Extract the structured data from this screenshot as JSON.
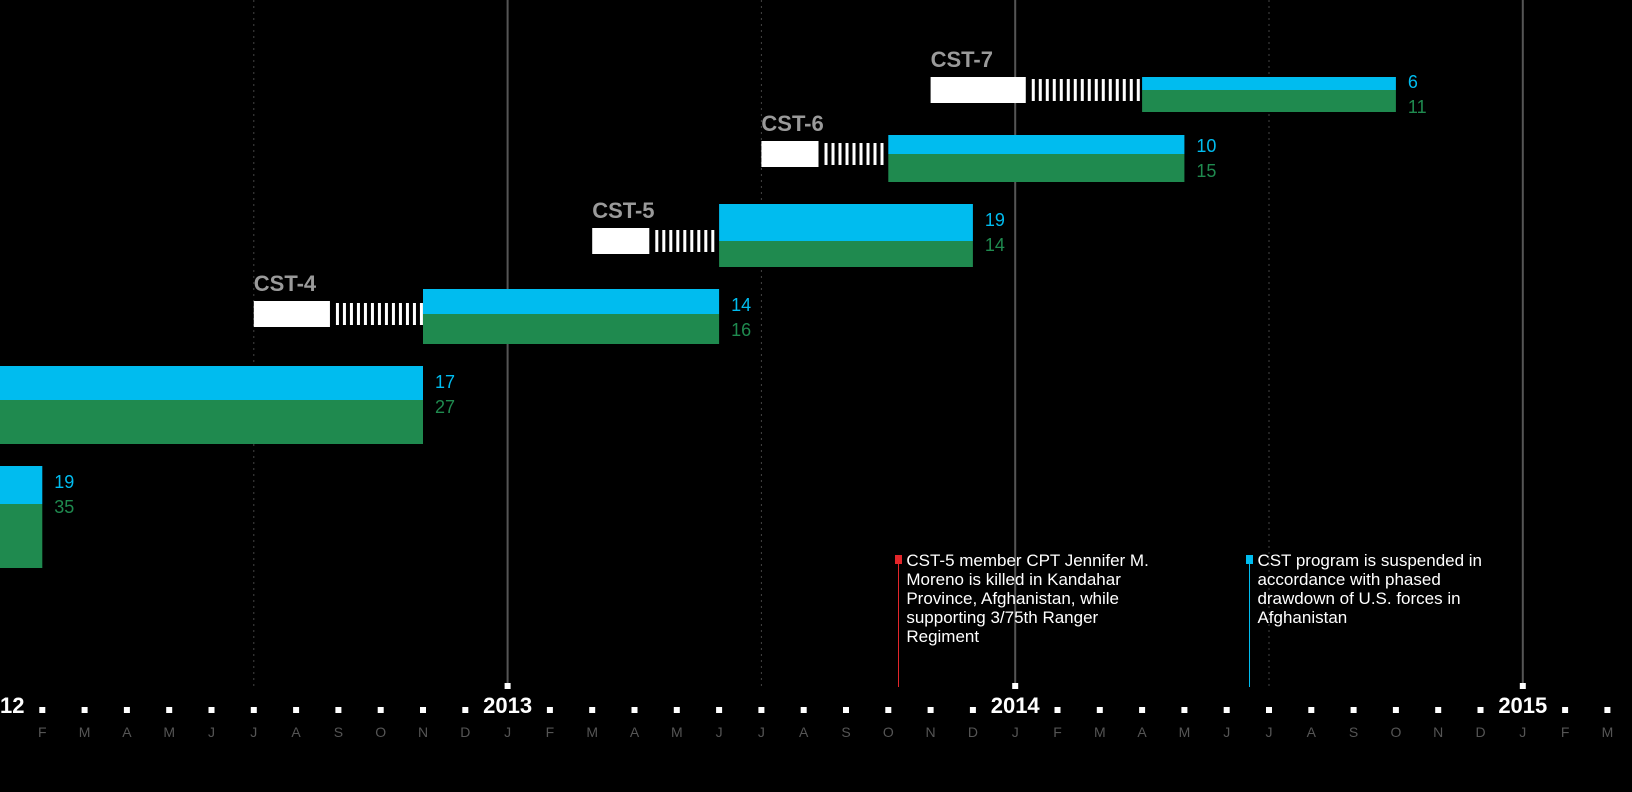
{
  "chart_data": {
    "type": "gantt",
    "x_axis": {
      "visible_range": [
        "2012-01-01",
        "2015-02-01"
      ],
      "year_labels": [
        "12",
        "2013",
        "2014",
        "2015"
      ],
      "month_labels": [
        "J",
        "F",
        "M",
        "A",
        "M",
        "J",
        "J",
        "A",
        "S",
        "O",
        "N",
        "D"
      ]
    },
    "colors": {
      "series_a": "#00bcef",
      "series_b": "#1f8a4f",
      "prep": "#ffffff",
      "event_red": "#e3262a"
    },
    "teams": [
      {
        "label": "",
        "prep": null,
        "deploy": [
          "2011-08-01",
          "2012-02-01"
        ],
        "values": [
          19,
          35
        ]
      },
      {
        "label": "",
        "prep": null,
        "deploy": [
          "2012-01-01",
          "2012-11-01"
        ],
        "values": [
          17,
          27
        ]
      },
      {
        "label": "CST-4",
        "prep": [
          "2012-07-01",
          "2012-11-01"
        ],
        "deploy": [
          "2012-11-01",
          "2013-06-01"
        ],
        "values": [
          14,
          16
        ]
      },
      {
        "label": "CST-5",
        "prep": [
          "2013-03-01",
          "2013-06-01"
        ],
        "deploy": [
          "2013-06-01",
          "2013-12-01"
        ],
        "values": [
          19,
          14
        ]
      },
      {
        "label": "CST-6",
        "prep": [
          "2013-07-01",
          "2013-10-01"
        ],
        "deploy": [
          "2013-10-01",
          "2014-05-01"
        ],
        "values": [
          10,
          15
        ]
      },
      {
        "label": "CST-7",
        "prep": [
          "2013-11-01",
          "2014-04-01"
        ],
        "deploy": [
          "2014-04-01",
          "2014-10-01"
        ],
        "values": [
          6,
          11
        ]
      }
    ],
    "events": [
      {
        "date": "2013-10-06",
        "color": "#e3262a",
        "text": "CST-5 member CPT Jennifer M. Moreno is killed in Kandahar Province, Afghanistan, while supporting 3/75th Ranger Regiment"
      },
      {
        "date": "2014-06-15",
        "color": "#00bcef",
        "text": "CST program is suspended in accordance with phased drawdown of U.S. forces in Afghanistan"
      }
    ]
  }
}
